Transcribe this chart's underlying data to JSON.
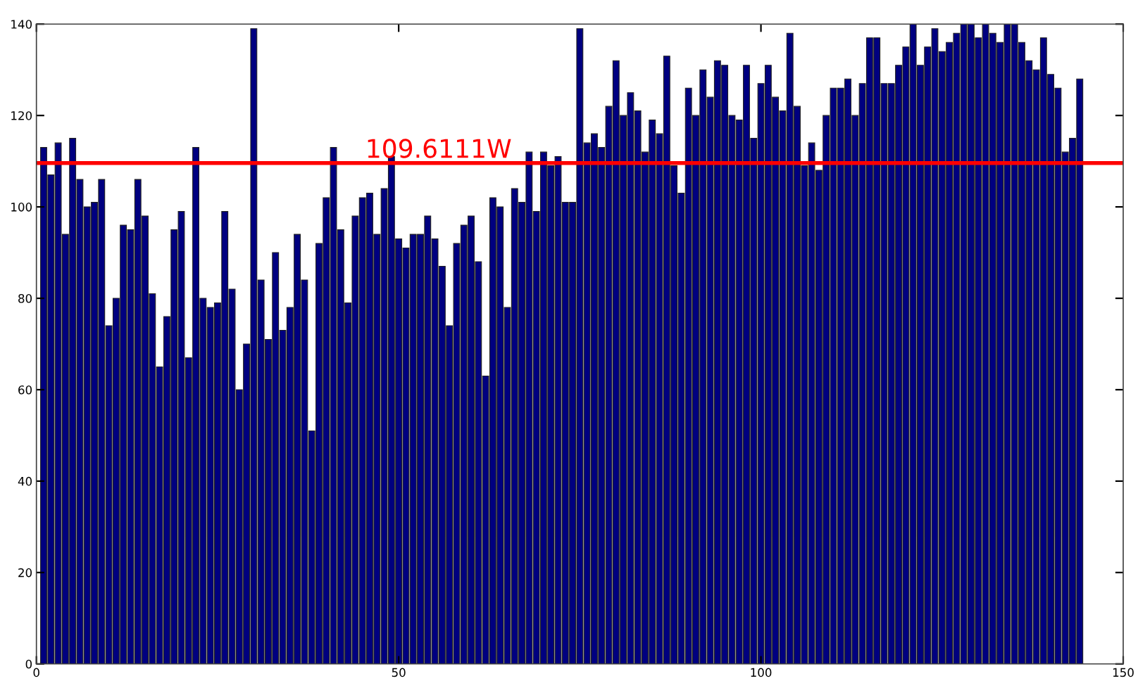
{
  "chart_data": {
    "type": "bar",
    "x": [
      1,
      2,
      3,
      4,
      5,
      6,
      7,
      8,
      9,
      10,
      11,
      12,
      13,
      14,
      15,
      16,
      17,
      18,
      19,
      20,
      21,
      22,
      23,
      24,
      25,
      26,
      27,
      28,
      29,
      30,
      31,
      32,
      33,
      34,
      35,
      36,
      37,
      38,
      39,
      40,
      41,
      42,
      43,
      44,
      45,
      46,
      47,
      48,
      49,
      50,
      51,
      52,
      53,
      54,
      55,
      56,
      57,
      58,
      59,
      60,
      61,
      62,
      63,
      64,
      65,
      66,
      67,
      68,
      69,
      70,
      71,
      72,
      73,
      74,
      75,
      76,
      77,
      78,
      79,
      80,
      81,
      82,
      83,
      84,
      85,
      86,
      87,
      88,
      89,
      90,
      91,
      92,
      93,
      94,
      95,
      96,
      97,
      98,
      99,
      100,
      101,
      102,
      103,
      104,
      105,
      106,
      107,
      108,
      109,
      110,
      111,
      112,
      113,
      114,
      115,
      116,
      117,
      118,
      119,
      120,
      121,
      122,
      123,
      124,
      125,
      126,
      127,
      128,
      129,
      130,
      131,
      132,
      133,
      134,
      135,
      136,
      137,
      138,
      139,
      140,
      141,
      142,
      143,
      144
    ],
    "values": [
      113,
      107,
      114,
      94,
      115,
      106,
      100,
      101,
      106,
      74,
      80,
      96,
      95,
      106,
      98,
      81,
      65,
      76,
      95,
      99,
      67,
      113,
      80,
      78,
      79,
      99,
      82,
      60,
      70,
      139,
      84,
      71,
      90,
      73,
      78,
      94,
      84,
      51,
      92,
      102,
      113,
      95,
      79,
      98,
      102,
      103,
      94,
      104,
      111,
      93,
      91,
      94,
      94,
      98,
      93,
      87,
      74,
      92,
      96,
      98,
      88,
      63,
      102,
      100,
      78,
      104,
      101,
      112,
      99,
      112,
      109,
      111,
      101,
      101,
      139,
      114,
      116,
      113,
      122,
      132,
      120,
      125,
      121,
      112,
      119,
      116,
      133,
      109,
      103,
      126,
      120,
      130,
      124,
      132,
      131,
      120,
      119,
      131,
      115,
      127,
      131,
      124,
      121,
      138,
      122,
      109,
      114,
      108,
      120,
      126,
      126,
      128,
      120,
      127,
      137,
      137,
      127,
      127,
      131,
      135,
      140,
      131,
      135,
      139,
      134,
      136,
      138,
      140,
      140,
      137,
      140,
      138,
      136,
      140,
      140,
      136,
      132,
      130,
      137,
      129,
      126,
      112,
      115,
      128
    ],
    "color": "#000080",
    "xlim": [
      0,
      150
    ],
    "xticks": [
      0,
      50,
      100,
      150
    ],
    "ylim": [
      0,
      140
    ],
    "yticks": [
      0,
      20,
      40,
      60,
      80,
      100,
      120,
      140
    ],
    "ref_lines": [
      {
        "axis": "y",
        "value": 109.6111,
        "label": "109.6111W",
        "color": "#ff0000"
      }
    ],
    "grid": false,
    "legend": false
  }
}
